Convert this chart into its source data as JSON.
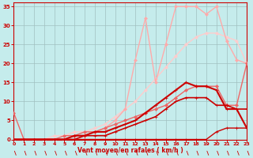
{
  "xlabel": "Vent moyen/en rafales ( km/h )",
  "xlim": [
    0,
    23
  ],
  "ylim": [
    0,
    36
  ],
  "xticks": [
    0,
    1,
    2,
    3,
    4,
    5,
    6,
    7,
    8,
    9,
    10,
    11,
    12,
    13,
    14,
    15,
    16,
    17,
    18,
    19,
    20,
    21,
    22,
    23
  ],
  "yticks": [
    0,
    5,
    10,
    15,
    20,
    25,
    30,
    35
  ],
  "bg_color": "#c5ecec",
  "grid_color": "#a0c0c0",
  "series": [
    {
      "x": [
        0,
        1,
        2,
        3,
        4,
        5,
        6,
        7,
        8,
        9,
        10,
        11,
        12,
        13,
        14,
        15,
        16,
        17,
        18,
        19,
        20,
        21,
        22,
        23
      ],
      "y": [
        0,
        0,
        0,
        0,
        0,
        0,
        0,
        0,
        0,
        0,
        0,
        0,
        0,
        0,
        0,
        0,
        0,
        0,
        0,
        0,
        2,
        3,
        3,
        3
      ],
      "color": "#cc0000",
      "lw": 1.0,
      "marker": "+",
      "ms": 3,
      "zorder": 5
    },
    {
      "x": [
        0,
        1,
        2,
        3,
        4,
        5,
        6,
        7,
        8,
        9,
        10,
        11,
        12,
        13,
        14,
        15,
        16,
        17,
        18,
        19,
        20,
        21,
        22,
        23
      ],
      "y": [
        0,
        0,
        0,
        0,
        0,
        0,
        0,
        1,
        1,
        1,
        2,
        3,
        4,
        5,
        6,
        8,
        10,
        11,
        11,
        11,
        9,
        9,
        8,
        8
      ],
      "color": "#cc0000",
      "lw": 1.2,
      "marker": "+",
      "ms": 3,
      "zorder": 5
    },
    {
      "x": [
        0,
        1,
        2,
        3,
        4,
        5,
        6,
        7,
        8,
        9,
        10,
        11,
        12,
        13,
        14,
        15,
        16,
        17,
        18,
        19,
        20,
        21,
        22,
        23
      ],
      "y": [
        0,
        0,
        0,
        0,
        0,
        0,
        1,
        1,
        2,
        2,
        3,
        4,
        5,
        7,
        9,
        11,
        13,
        15,
        14,
        14,
        13,
        8,
        8,
        3
      ],
      "color": "#cc0000",
      "lw": 1.5,
      "marker": "+",
      "ms": 3,
      "zorder": 5
    },
    {
      "x": [
        0,
        1,
        2,
        3,
        4,
        5,
        6,
        7,
        8,
        9,
        10,
        11,
        12,
        13,
        14,
        15,
        16,
        17,
        18,
        19,
        20,
        21,
        22,
        23
      ],
      "y": [
        7,
        0,
        0,
        0,
        0,
        1,
        1,
        2,
        2,
        3,
        4,
        5,
        6,
        7,
        8,
        9,
        11,
        13,
        14,
        14,
        14,
        9,
        9,
        20
      ],
      "color": "#ee6666",
      "lw": 1.0,
      "marker": "D",
      "ms": 2,
      "zorder": 4
    },
    {
      "x": [
        0,
        1,
        2,
        3,
        4,
        5,
        6,
        7,
        8,
        9,
        10,
        11,
        12,
        13,
        14,
        15,
        16,
        17,
        18,
        19,
        20,
        21,
        22,
        23
      ],
      "y": [
        0,
        0,
        0,
        0,
        0,
        0,
        1,
        1,
        2,
        3,
        5,
        8,
        21,
        32,
        15,
        25,
        35,
        35,
        35,
        33,
        35,
        26,
        21,
        20
      ],
      "color": "#ffaaaa",
      "lw": 1.0,
      "marker": "D",
      "ms": 2,
      "zorder": 3
    },
    {
      "x": [
        0,
        1,
        2,
        3,
        4,
        5,
        6,
        7,
        8,
        9,
        10,
        11,
        12,
        13,
        14,
        15,
        16,
        17,
        18,
        19,
        20,
        21,
        22,
        23
      ],
      "y": [
        0,
        0,
        0,
        0,
        1,
        1,
        2,
        2,
        3,
        4,
        6,
        8,
        10,
        13,
        16,
        19,
        22,
        25,
        27,
        28,
        28,
        27,
        26,
        20
      ],
      "color": "#ffcccc",
      "lw": 1.0,
      "marker": "D",
      "ms": 2,
      "zorder": 2
    }
  ]
}
